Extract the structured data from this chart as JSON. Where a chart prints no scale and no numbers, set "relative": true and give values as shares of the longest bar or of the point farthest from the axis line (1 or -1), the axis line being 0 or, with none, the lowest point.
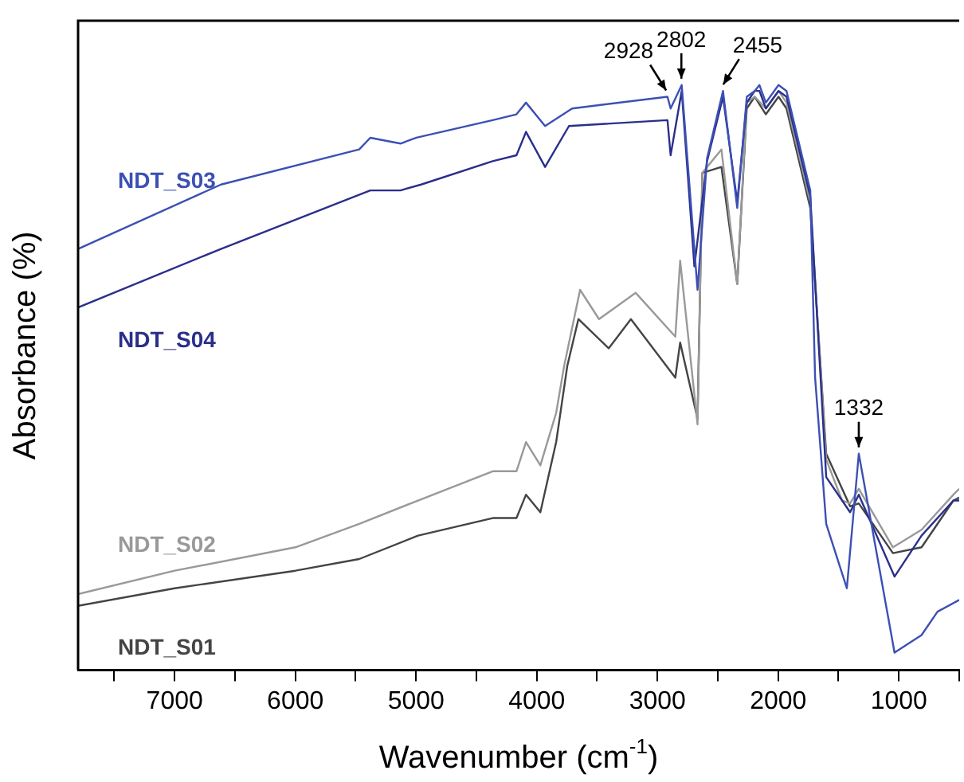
{
  "chart_data": {
    "type": "line",
    "relative": true,
    "xlabel": "Wavenumber (cm$^{-1}$)",
    "ylabel": "Absorbance (%)",
    "xlim": [
      7800,
      500
    ],
    "xticks": [
      {
        "value": 7500,
        "label": null
      },
      7000,
      {
        "value": 6500,
        "label": null
      },
      6000,
      {
        "value": 5500,
        "label": null
      },
      5000,
      {
        "value": 4500,
        "label": null
      },
      4000,
      {
        "value": 3500,
        "label": null
      },
      3000,
      {
        "value": 2500,
        "label": null
      },
      2000,
      {
        "value": 1500,
        "label": null
      },
      1000,
      {
        "value": 500,
        "label": null
      }
    ],
    "grid": false,
    "legend": false,
    "marker": "none",
    "line_style": "solid",
    "annotations": [
      {
        "text": "2928",
        "x": 2928,
        "y": 0.98
      },
      {
        "text": "2802",
        "x": 2802,
        "y": 1.0
      },
      {
        "text": "2455",
        "x": 2455,
        "y": 0.99
      },
      {
        "text": "1332",
        "x": 1332,
        "y": 0.37
      }
    ],
    "series": [
      {
        "name": "NDT_S03",
        "color": "#3c50b4",
        "x": [
          7800,
          6616,
          5471,
          5379,
          5129,
          4997,
          4365,
          4168,
          4089,
          3931,
          3707,
          2917,
          2891,
          2799,
          2668,
          2589,
          2457,
          2339,
          2260,
          2194,
          2155,
          2102,
          1997,
          1931,
          1734,
          1694,
          1602,
          1431,
          1332,
          1036,
          812,
          680,
          500
        ],
        "values": [
          0.72,
          0.83,
          0.89,
          0.91,
          0.9,
          0.91,
          0.94,
          0.95,
          0.97,
          0.93,
          0.96,
          0.98,
          0.96,
          1.0,
          0.65,
          0.875,
          0.99,
          0.79,
          0.98,
          0.99,
          1.0,
          0.97,
          1.0,
          0.99,
          0.82,
          0.5,
          0.25,
          0.14,
          0.37,
          0.03,
          0.06,
          0.1,
          0.12
        ]
      },
      {
        "name": "NDT_S04",
        "color": "#2a2f8a",
        "x": [
          7800,
          6616,
          5379,
          5129,
          4958,
          4365,
          4168,
          4089,
          3931,
          3733,
          2917,
          2891,
          2799,
          2694,
          2589,
          2457,
          2339,
          2260,
          2194,
          2155,
          2102,
          1997,
          1931,
          1734,
          1602,
          1404,
          1332,
          1036,
          812,
          548,
          500
        ],
        "values": [
          0.62,
          0.72,
          0.82,
          0.82,
          0.83,
          0.87,
          0.88,
          0.92,
          0.86,
          0.93,
          0.94,
          0.88,
          0.99,
          0.69,
          0.87,
          0.98,
          0.8,
          0.97,
          0.99,
          0.99,
          0.96,
          0.99,
          0.98,
          0.81,
          0.33,
          0.27,
          0.3,
          0.16,
          0.23,
          0.29,
          0.29
        ]
      },
      {
        "name": "NDT_S02",
        "color": "#999999",
        "x": [
          7800,
          7000,
          6000,
          5471,
          4984,
          4365,
          4168,
          4089,
          3970,
          3839,
          3773,
          3641,
          3484,
          3181,
          2852,
          2812,
          2668,
          2628,
          2470,
          2339,
          2260,
          2194,
          2102,
          1997,
          1931,
          1734,
          1602,
          1470,
          1404,
          1332,
          1049,
          812,
          548,
          500
        ],
        "values": [
          0.13,
          0.17,
          0.21,
          0.25,
          0.29,
          0.34,
          0.34,
          0.39,
          0.35,
          0.44,
          0.52,
          0.65,
          0.6,
          0.645,
          0.57,
          0.7,
          0.42,
          0.85,
          0.89,
          0.66,
          0.97,
          0.98,
          0.96,
          0.99,
          0.97,
          0.8,
          0.36,
          0.29,
          0.285,
          0.31,
          0.21,
          0.24,
          0.3,
          0.31
        ]
      },
      {
        "name": "NDT_S01",
        "color": "#444444",
        "x": [
          7800,
          7000,
          6000,
          5471,
          4984,
          4365,
          4168,
          4089,
          3970,
          3839,
          3747,
          3655,
          3404,
          3220,
          2852,
          2812,
          2668,
          2628,
          2470,
          2339,
          2260,
          2194,
          2102,
          1997,
          1931,
          1734,
          1602,
          1404,
          1332,
          1049,
          812,
          548,
          500
        ],
        "values": [
          0.11,
          0.14,
          0.17,
          0.19,
          0.23,
          0.26,
          0.26,
          0.3,
          0.27,
          0.39,
          0.52,
          0.6,
          0.55,
          0.6,
          0.5,
          0.56,
          0.43,
          0.85,
          0.86,
          0.66,
          0.96,
          0.98,
          0.95,
          0.98,
          0.96,
          0.79,
          0.37,
          0.28,
          0.285,
          0.2,
          0.21,
          0.29,
          0.295
        ]
      }
    ]
  }
}
